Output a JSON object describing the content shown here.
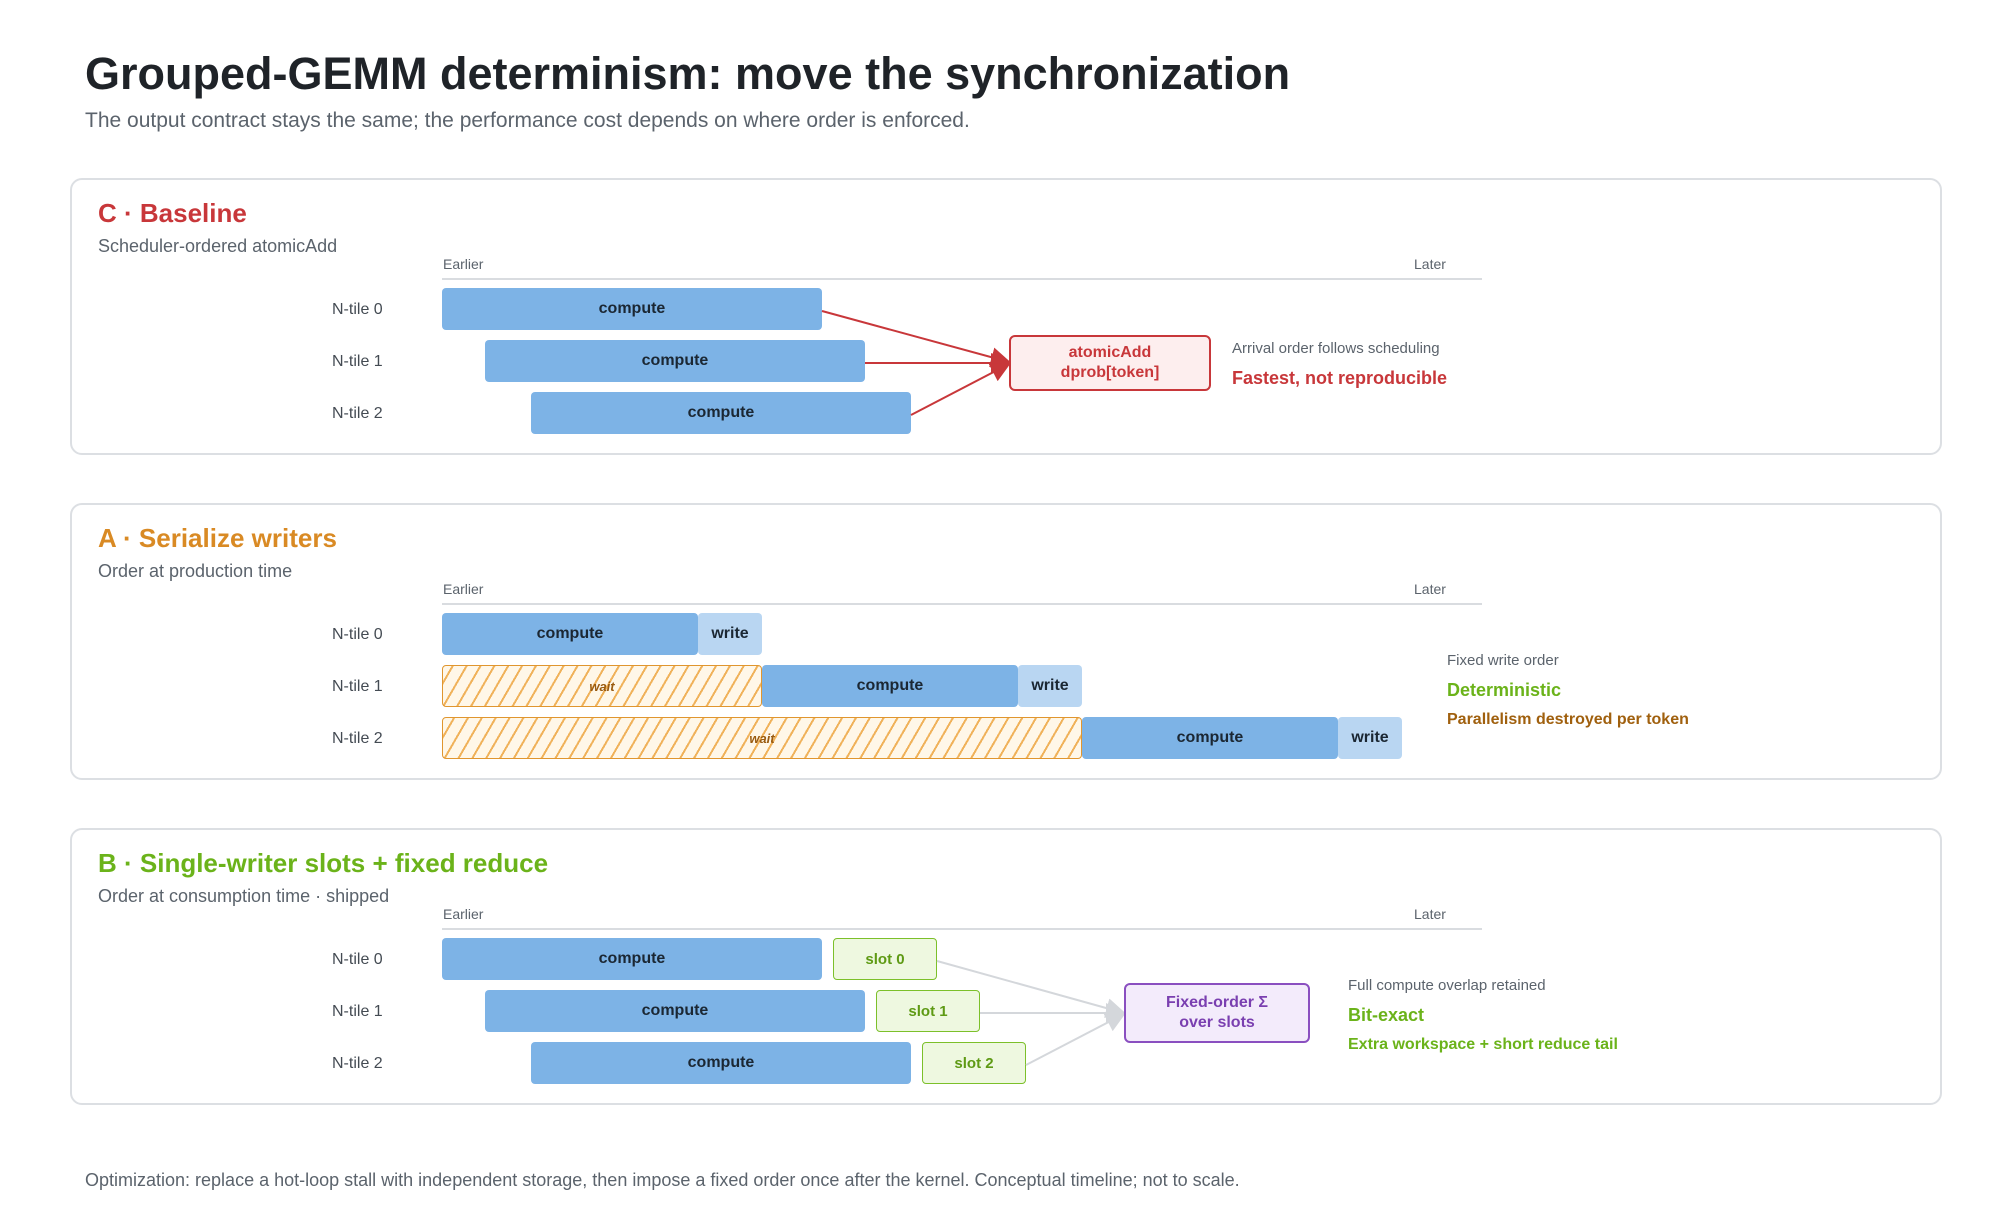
{
  "title": "Grouped-GEMM determinism: move the synchronization",
  "subtitle": "The output contract stays the same; the performance cost depends on where order is enforced.",
  "axis": {
    "start": "Earlier",
    "end": "Later"
  },
  "row_labels": [
    "N-tile 0",
    "N-tile 1",
    "N-tile 2"
  ],
  "labels": {
    "compute": "compute",
    "write": "write",
    "wait": "wait"
  },
  "colors": {
    "baseline": "#c8373a",
    "serialize": "#d98a24",
    "slots": "#6bb31a",
    "compute": "#7db3e6",
    "write": "#b9d6f2",
    "reduce": "#8a4fc0",
    "muted_note": "#a0600e"
  },
  "panels": {
    "baseline": {
      "title": "C · Baseline",
      "subtitle": "Scheduler-ordered atomicAdd",
      "target": {
        "line1": "atomicAdd",
        "line2": "dprob[token]"
      },
      "note": "Arrival order follows scheduling",
      "verdict": "Fastest, not reproducible"
    },
    "serialize": {
      "title": "A · Serialize writers",
      "subtitle": "Order at production time",
      "note": "Fixed write order",
      "verdict": "Deterministic",
      "cost": "Parallelism destroyed per token"
    },
    "slots": {
      "title": "B · Single-writer slots + fixed reduce",
      "subtitle": "Order at consumption time · shipped",
      "slots": [
        "slot 0",
        "slot 1",
        "slot 2"
      ],
      "target": {
        "line1": "Fixed-order Σ",
        "line2": "over slots"
      },
      "note": "Full compute overlap retained",
      "verdict": "Bit-exact",
      "cost": "Extra workspace + short reduce tail"
    }
  },
  "footer": "Optimization: replace a hot-loop stall with independent storage, then impose a fixed order once after the kernel. Conceptual timeline; not to scale."
}
